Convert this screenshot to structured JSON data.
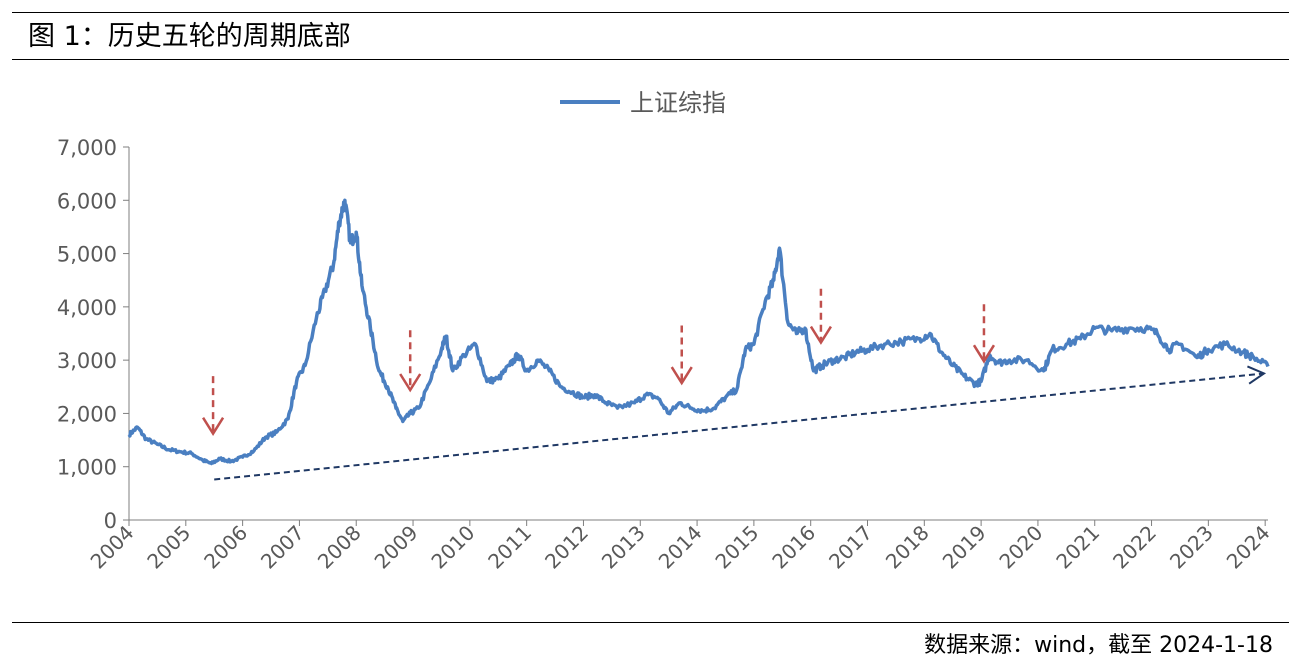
{
  "header": {
    "title": "图 1：历史五轮的周期底部"
  },
  "footer": {
    "source": "数据来源：wind，截至 2024-1-18"
  },
  "colors": {
    "series": "#4a7fc1",
    "arrow": "#c0504d",
    "trend": "#1f3864",
    "axis": "#7f7f7f"
  },
  "chart_data": {
    "type": "line",
    "legend_position": "top-center",
    "grid": false,
    "xlabel": "",
    "ylabel": "",
    "ylim": [
      0,
      7000
    ],
    "xlim": [
      2004.0,
      2024.05
    ],
    "y_ticks": [
      0,
      1000,
      2000,
      3000,
      4000,
      5000,
      6000,
      7000
    ],
    "y_tick_labels": [
      "0",
      "1,000",
      "2,000",
      "3,000",
      "4,000",
      "5,000",
      "6,000",
      "7,000"
    ],
    "x_tick_labels": [
      "2004",
      "2005",
      "2006",
      "2007",
      "2008",
      "2009",
      "2010",
      "2011",
      "2012",
      "2013",
      "2014",
      "2015",
      "2016",
      "2017",
      "2018",
      "2019",
      "2020",
      "2021",
      "2022",
      "2023",
      "2024"
    ],
    "series": [
      {
        "name": "上证综指",
        "x": [
          2004.0,
          2004.15,
          2004.3,
          2004.5,
          2004.7,
          2004.9,
          2005.1,
          2005.3,
          2005.45,
          2005.6,
          2005.8,
          2006.0,
          2006.2,
          2006.4,
          2006.6,
          2006.8,
          2006.95,
          2007.1,
          2007.3,
          2007.45,
          2007.6,
          2007.7,
          2007.8,
          2007.9,
          2008.0,
          2008.1,
          2008.25,
          2008.4,
          2008.55,
          2008.7,
          2008.82,
          2008.95,
          2009.1,
          2009.3,
          2009.5,
          2009.58,
          2009.7,
          2009.9,
          2010.1,
          2010.3,
          2010.5,
          2010.7,
          2010.85,
          2011.0,
          2011.2,
          2011.4,
          2011.6,
          2011.8,
          2012.0,
          2012.2,
          2012.4,
          2012.6,
          2012.9,
          2013.1,
          2013.3,
          2013.5,
          2013.7,
          2013.9,
          2014.1,
          2014.3,
          2014.5,
          2014.7,
          2014.85,
          2015.0,
          2015.2,
          2015.35,
          2015.45,
          2015.6,
          2015.75,
          2015.9,
          2016.05,
          2016.2,
          2016.4,
          2016.6,
          2016.8,
          2017.0,
          2017.3,
          2017.6,
          2017.9,
          2018.1,
          2018.3,
          2018.5,
          2018.7,
          2018.9,
          2019.0,
          2019.15,
          2019.3,
          2019.5,
          2019.8,
          2020.1,
          2020.25,
          2020.5,
          2020.75,
          2021.0,
          2021.3,
          2021.6,
          2021.9,
          2022.1,
          2022.3,
          2022.5,
          2022.8,
          2023.0,
          2023.3,
          2023.6,
          2023.8,
          2024.05
        ],
        "values": [
          1600,
          1740,
          1520,
          1420,
          1320,
          1280,
          1250,
          1120,
          1060,
          1150,
          1100,
          1180,
          1300,
          1550,
          1650,
          1900,
          2600,
          2900,
          3800,
          4300,
          4800,
          5600,
          6000,
          5200,
          5400,
          4400,
          3600,
          2800,
          2500,
          2100,
          1850,
          2000,
          2100,
          2600,
          3200,
          3450,
          2800,
          3100,
          3300,
          2600,
          2650,
          2900,
          3100,
          2800,
          3000,
          2800,
          2500,
          2400,
          2300,
          2350,
          2200,
          2100,
          2200,
          2350,
          2300,
          2000,
          2200,
          2100,
          2050,
          2100,
          2300,
          2450,
          3200,
          3300,
          4100,
          4500,
          5100,
          3700,
          3500,
          3600,
          2800,
          2900,
          3000,
          3050,
          3150,
          3200,
          3300,
          3350,
          3400,
          3500,
          3150,
          2900,
          2700,
          2550,
          2600,
          3100,
          2950,
          3000,
          3000,
          2800,
          3200,
          3300,
          3400,
          3600,
          3550,
          3600,
          3600,
          3500,
          3200,
          3300,
          3050,
          3200,
          3300,
          3150,
          3050,
          2880
        ]
      }
    ],
    "annotations": [
      {
        "type": "down-arrow",
        "x": 2005.48,
        "y_from": 2700,
        "y_to": 1620
      },
      {
        "type": "down-arrow",
        "x": 2008.95,
        "y_from": 3560,
        "y_to": 2440
      },
      {
        "type": "down-arrow",
        "x": 2013.73,
        "y_from": 3650,
        "y_to": 2570
      },
      {
        "type": "down-arrow",
        "x": 2016.18,
        "y_from": 4340,
        "y_to": 3330
      },
      {
        "type": "down-arrow",
        "x": 2019.05,
        "y_from": 4050,
        "y_to": 2980
      },
      {
        "type": "trend-line",
        "x1": 2005.5,
        "y1": 760,
        "x2": 2024.05,
        "y2": 2750
      }
    ]
  }
}
